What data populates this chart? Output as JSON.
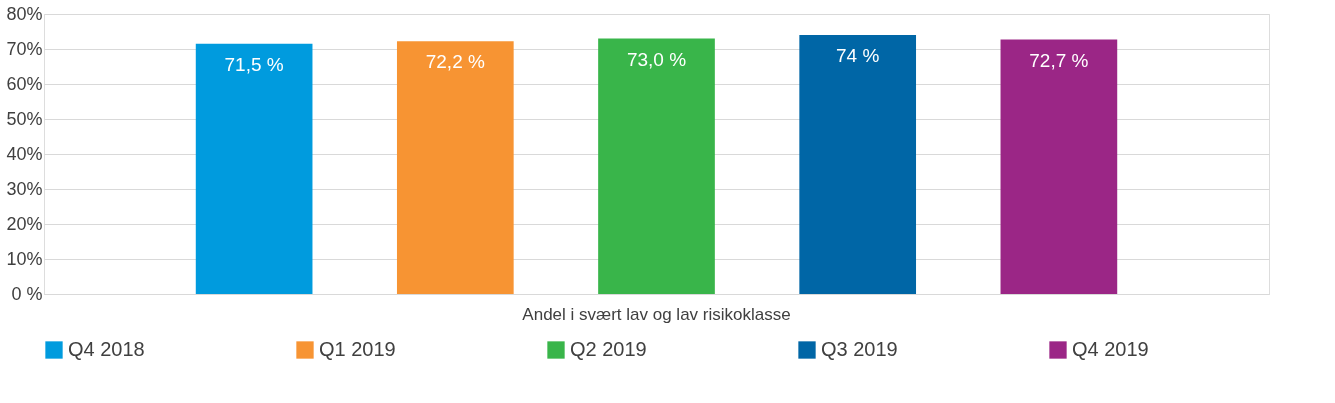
{
  "chart_data": {
    "type": "bar",
    "categories": [
      "Andel i svært lav og lav risikoklasse"
    ],
    "series": [
      {
        "name": "Q4 2018",
        "color": "#009bde",
        "values": [
          71.5
        ],
        "value_labels": [
          "71,5 %"
        ]
      },
      {
        "name": "Q1 2019",
        "color": "#f79433",
        "values": [
          72.2
        ],
        "value_labels": [
          "72,2 %"
        ]
      },
      {
        "name": "Q2 2019",
        "color": "#39b54a",
        "values": [
          73.0
        ],
        "value_labels": [
          "73,0 %"
        ]
      },
      {
        "name": "Q3 2019",
        "color": "#0066a6",
        "values": [
          74
        ],
        "value_labels": [
          "74 %"
        ]
      },
      {
        "name": "Q4 2019",
        "color": "#9b2686",
        "values": [
          72.7
        ],
        "value_labels": [
          "72,7 %"
        ]
      }
    ],
    "ylim": [
      0,
      80
    ],
    "yticks": [
      {
        "value": 0,
        "label": "0 %"
      },
      {
        "value": 10,
        "label": "10%"
      },
      {
        "value": 20,
        "label": "20%"
      },
      {
        "value": 30,
        "label": "30%"
      },
      {
        "value": 40,
        "label": "40%"
      },
      {
        "value": 50,
        "label": "50%"
      },
      {
        "value": 60,
        "label": "60%"
      },
      {
        "value": 70,
        "label": "70%"
      },
      {
        "value": 80,
        "label": "80%"
      }
    ],
    "grid": "y",
    "legend": "bottom"
  }
}
